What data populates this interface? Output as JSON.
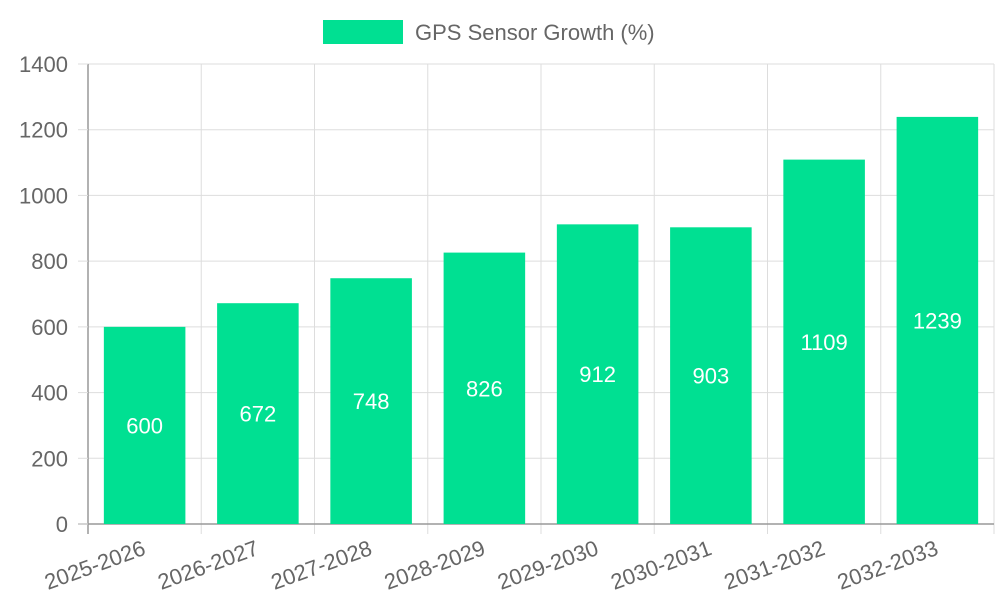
{
  "chart_data": {
    "type": "bar",
    "categories": [
      "2025-2026",
      "2026-2027",
      "2027-2028",
      "2028-2029",
      "2029-2030",
      "2030-2031",
      "2031-2032",
      "2032-2033"
    ],
    "series": [
      {
        "name": "GPS Sensor Growth (%)",
        "values": [
          600,
          672,
          748,
          826,
          912,
          903,
          1109,
          1239
        ],
        "color": "#00e092"
      }
    ],
    "ylim": [
      0,
      1400
    ],
    "yticks": [
      0,
      200,
      400,
      600,
      800,
      1000,
      1200,
      1400
    ],
    "grid": true,
    "legend_position": "top-center",
    "data_labels": true
  },
  "colors": {
    "bar": "#00e092",
    "grid": "#dddddd",
    "axis": "#999999",
    "text": "#666666",
    "label": "#ffffff"
  }
}
